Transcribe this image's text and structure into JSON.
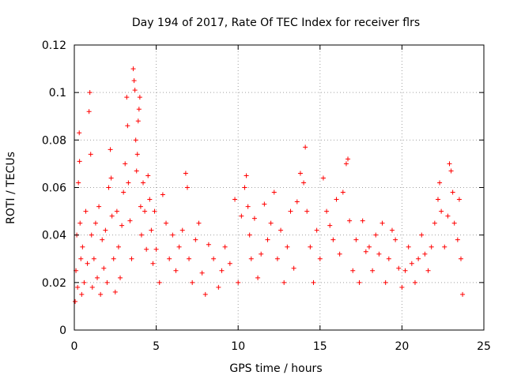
{
  "chart_data": {
    "type": "scatter",
    "title": "Day 194 of 2017, Rate Of TEC Index for receiver flrs",
    "xlabel": "GPS time / hours",
    "ylabel": "ROTI / TECUs",
    "xlim": [
      0,
      25
    ],
    "ylim": [
      0,
      0.12
    ],
    "xticks": [
      0,
      5,
      10,
      15,
      20,
      25
    ],
    "xtick_labels": [
      "0",
      "5",
      "10",
      "15",
      "20",
      "25"
    ],
    "yticks": [
      0,
      0.02,
      0.04,
      0.06,
      0.08,
      0.1,
      0.12
    ],
    "ytick_labels": [
      "0",
      "0.02",
      "0.04",
      "0.06",
      "0.08",
      "0.1",
      "0.12"
    ],
    "grid": true,
    "marker": "+",
    "color": "#ff0000",
    "series": [
      {
        "points": [
          [
            0.05,
            0.012
          ],
          [
            0.1,
            0.025
          ],
          [
            0.15,
            0.04
          ],
          [
            0.2,
            0.018
          ],
          [
            0.25,
            0.062
          ],
          [
            0.3,
            0.083
          ],
          [
            0.32,
            0.071
          ],
          [
            0.35,
            0.045
          ],
          [
            0.4,
            0.03
          ],
          [
            0.45,
            0.015
          ],
          [
            0.5,
            0.035
          ],
          [
            0.6,
            0.02
          ],
          [
            0.7,
            0.05
          ],
          [
            0.8,
            0.028
          ],
          [
            0.9,
            0.092
          ],
          [
            0.95,
            0.1
          ],
          [
            1.0,
            0.074
          ],
          [
            1.05,
            0.04
          ],
          [
            1.1,
            0.018
          ],
          [
            1.2,
            0.03
          ],
          [
            1.3,
            0.045
          ],
          [
            1.4,
            0.022
          ],
          [
            1.5,
            0.052
          ],
          [
            1.6,
            0.015
          ],
          [
            1.7,
            0.038
          ],
          [
            1.8,
            0.026
          ],
          [
            1.9,
            0.042
          ],
          [
            2.0,
            0.02
          ],
          [
            2.1,
            0.06
          ],
          [
            2.2,
            0.076
          ],
          [
            2.25,
            0.064
          ],
          [
            2.3,
            0.048
          ],
          [
            2.4,
            0.03
          ],
          [
            2.5,
            0.016
          ],
          [
            2.6,
            0.05
          ],
          [
            2.7,
            0.035
          ],
          [
            2.8,
            0.022
          ],
          [
            2.9,
            0.044
          ],
          [
            3.0,
            0.058
          ],
          [
            3.1,
            0.07
          ],
          [
            3.2,
            0.098
          ],
          [
            3.25,
            0.086
          ],
          [
            3.3,
            0.062
          ],
          [
            3.4,
            0.046
          ],
          [
            3.5,
            0.03
          ],
          [
            3.6,
            0.11
          ],
          [
            3.65,
            0.105
          ],
          [
            3.7,
            0.101
          ],
          [
            3.75,
            0.08
          ],
          [
            3.8,
            0.067
          ],
          [
            3.85,
            0.074
          ],
          [
            3.9,
            0.088
          ],
          [
            3.95,
            0.093
          ],
          [
            4.0,
            0.098
          ],
          [
            4.05,
            0.052
          ],
          [
            4.1,
            0.04
          ],
          [
            4.2,
            0.062
          ],
          [
            4.3,
            0.05
          ],
          [
            4.4,
            0.034
          ],
          [
            4.5,
            0.065
          ],
          [
            4.6,
            0.055
          ],
          [
            4.7,
            0.042
          ],
          [
            4.8,
            0.028
          ],
          [
            4.9,
            0.05
          ],
          [
            5.0,
            0.034
          ],
          [
            5.2,
            0.02
          ],
          [
            5.4,
            0.057
          ],
          [
            5.6,
            0.045
          ],
          [
            5.8,
            0.03
          ],
          [
            6.0,
            0.04
          ],
          [
            6.2,
            0.025
          ],
          [
            6.4,
            0.035
          ],
          [
            6.6,
            0.042
          ],
          [
            6.8,
            0.066
          ],
          [
            6.9,
            0.06
          ],
          [
            7.0,
            0.03
          ],
          [
            7.2,
            0.02
          ],
          [
            7.4,
            0.038
          ],
          [
            7.6,
            0.045
          ],
          [
            7.8,
            0.024
          ],
          [
            8.0,
            0.015
          ],
          [
            8.2,
            0.036
          ],
          [
            8.5,
            0.03
          ],
          [
            8.8,
            0.018
          ],
          [
            9.0,
            0.025
          ],
          [
            9.2,
            0.035
          ],
          [
            9.5,
            0.028
          ],
          [
            9.8,
            0.055
          ],
          [
            10.0,
            0.02
          ],
          [
            10.2,
            0.048
          ],
          [
            10.4,
            0.06
          ],
          [
            10.5,
            0.065
          ],
          [
            10.6,
            0.052
          ],
          [
            10.7,
            0.04
          ],
          [
            10.8,
            0.03
          ],
          [
            11.0,
            0.047
          ],
          [
            11.2,
            0.022
          ],
          [
            11.4,
            0.032
          ],
          [
            11.6,
            0.053
          ],
          [
            11.8,
            0.038
          ],
          [
            12.0,
            0.045
          ],
          [
            12.2,
            0.058
          ],
          [
            12.4,
            0.03
          ],
          [
            12.6,
            0.042
          ],
          [
            12.8,
            0.02
          ],
          [
            13.0,
            0.035
          ],
          [
            13.2,
            0.05
          ],
          [
            13.4,
            0.026
          ],
          [
            13.6,
            0.054
          ],
          [
            13.8,
            0.066
          ],
          [
            14.0,
            0.062
          ],
          [
            14.1,
            0.077
          ],
          [
            14.2,
            0.05
          ],
          [
            14.4,
            0.035
          ],
          [
            14.6,
            0.02
          ],
          [
            14.8,
            0.042
          ],
          [
            15.0,
            0.03
          ],
          [
            15.2,
            0.064
          ],
          [
            15.4,
            0.05
          ],
          [
            15.6,
            0.044
          ],
          [
            15.8,
            0.038
          ],
          [
            16.0,
            0.055
          ],
          [
            16.2,
            0.032
          ],
          [
            16.4,
            0.058
          ],
          [
            16.6,
            0.07
          ],
          [
            16.7,
            0.072
          ],
          [
            16.8,
            0.046
          ],
          [
            17.0,
            0.025
          ],
          [
            17.2,
            0.038
          ],
          [
            17.4,
            0.02
          ],
          [
            17.6,
            0.046
          ],
          [
            17.8,
            0.033
          ],
          [
            18.0,
            0.035
          ],
          [
            18.2,
            0.025
          ],
          [
            18.4,
            0.04
          ],
          [
            18.6,
            0.032
          ],
          [
            18.8,
            0.045
          ],
          [
            19.0,
            0.02
          ],
          [
            19.2,
            0.03
          ],
          [
            19.4,
            0.042
          ],
          [
            19.6,
            0.038
          ],
          [
            19.8,
            0.026
          ],
          [
            20.0,
            0.018
          ],
          [
            20.2,
            0.025
          ],
          [
            20.4,
            0.035
          ],
          [
            20.6,
            0.028
          ],
          [
            20.8,
            0.02
          ],
          [
            21.0,
            0.03
          ],
          [
            21.2,
            0.04
          ],
          [
            21.4,
            0.032
          ],
          [
            21.6,
            0.025
          ],
          [
            21.8,
            0.035
          ],
          [
            22.0,
            0.045
          ],
          [
            22.2,
            0.055
          ],
          [
            22.3,
            0.062
          ],
          [
            22.4,
            0.05
          ],
          [
            22.6,
            0.035
          ],
          [
            22.8,
            0.048
          ],
          [
            22.9,
            0.07
          ],
          [
            23.0,
            0.067
          ],
          [
            23.1,
            0.058
          ],
          [
            23.2,
            0.045
          ],
          [
            23.4,
            0.038
          ],
          [
            23.5,
            0.055
          ],
          [
            23.6,
            0.03
          ],
          [
            23.7,
            0.015
          ]
        ]
      }
    ]
  }
}
